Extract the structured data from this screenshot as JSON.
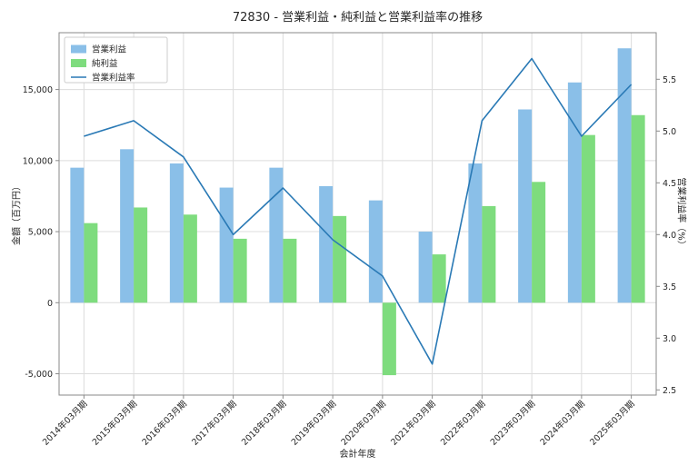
{
  "chart_data": {
    "type": "bar",
    "combo": "grouped bars (left axis) with overlay line (right axis)",
    "title": "72830 - 営業利益・純利益と営業利益率の推移",
    "xlabel": "会計年度",
    "ylabel_left": "金額（百万円）",
    "ylabel_right": "営業利益率（%）",
    "categories": [
      "2014年03月期",
      "2015年03月期",
      "2016年03月期",
      "2017年03月期",
      "2018年03月期",
      "2019年03月期",
      "2020年03月期",
      "2021年03月期",
      "2022年03月期",
      "2023年03月期",
      "2024年03月期",
      "2025年03月期"
    ],
    "series": [
      {
        "name": "営業利益",
        "type": "bar",
        "axis": "left",
        "color": "#8abfe8",
        "values": [
          9500,
          10800,
          9800,
          8100,
          9500,
          8200,
          7200,
          5000,
          9800,
          13600,
          15500,
          17900
        ]
      },
      {
        "name": "純利益",
        "type": "bar",
        "axis": "left",
        "color": "#7edc7e",
        "values": [
          5600,
          6700,
          6200,
          4500,
          4500,
          6100,
          -5100,
          3400,
          6800,
          8500,
          11800,
          13200
        ]
      },
      {
        "name": "営業利益率",
        "type": "line",
        "axis": "right",
        "color": "#2979b5",
        "values": [
          4.95,
          5.1,
          4.75,
          4.0,
          4.45,
          3.95,
          3.6,
          2.75,
          5.1,
          5.7,
          4.95,
          5.45
        ]
      }
    ],
    "ylim_left": [
      -6500,
      19000
    ],
    "yticks_left": {
      "values": [
        15000,
        10000,
        5000,
        0,
        -5000
      ],
      "labels": [
        "15,000",
        "10,000",
        "5,000",
        "0",
        "-5,000"
      ]
    },
    "ylim_right": [
      2.45,
      5.95
    ],
    "yticks_right": {
      "values": [
        5.5,
        5.0,
        4.5,
        4.0,
        3.5,
        3.0,
        2.5
      ],
      "labels": [
        "5.5",
        "5.0",
        "4.5",
        "4.0",
        "3.5",
        "3.0",
        "2.5"
      ]
    },
    "grid": true,
    "legend": {
      "position": "upper left",
      "labels": [
        "営業利益",
        "純利益",
        "営業利益率"
      ]
    },
    "colors": {
      "grid": "#dcdcdc",
      "spine": "#8a8a8a",
      "text": "#262626",
      "background": "#ffffff"
    }
  }
}
